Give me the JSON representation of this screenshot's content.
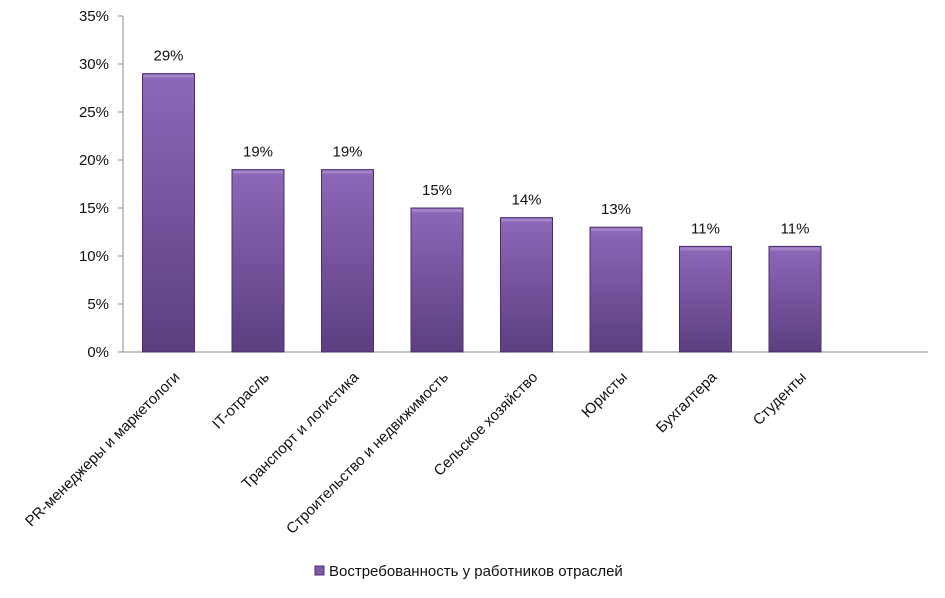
{
  "chart_data": {
    "type": "bar",
    "categories": [
      "PR-менеджеры  и маркетологи",
      "IT-отрасль",
      "Транспорт и логистика",
      "Строительство и недвижимость",
      "Сельское хозяйство",
      "Юристы",
      "Бухгалтера",
      "Студенты"
    ],
    "series": [
      {
        "name": "Востребованность  у работников  отраслей",
        "values": [
          29,
          19,
          19,
          15,
          14,
          13,
          11,
          11
        ],
        "data_labels": [
          "29%",
          "19%",
          "19%",
          "15%",
          "14%",
          "13%",
          "11%",
          "11%"
        ],
        "color": "#7f5aa8"
      }
    ],
    "yticks": [
      "0%",
      "5%",
      "10%",
      "15%",
      "20%",
      "25%",
      "30%",
      "35%"
    ],
    "ylim": [
      0,
      35
    ],
    "grid": false,
    "legend_position": "bottom",
    "colors": {
      "bar_top": "#8e68b9",
      "bar_bottom": "#5c3e80",
      "bar_edge": "#4a2f69",
      "axis": "#8c8c8c"
    }
  }
}
